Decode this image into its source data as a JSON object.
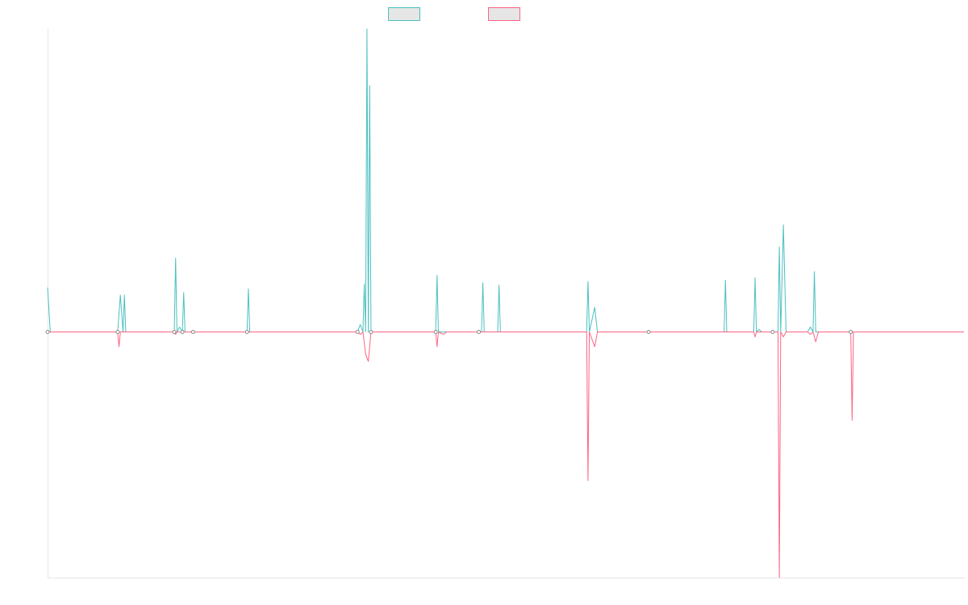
{
  "chart_data": {
    "type": "line",
    "title": "",
    "xlabel": "",
    "ylabel": "",
    "x_range": [
      0,
      340
    ],
    "ylim": [
      -100,
      123
    ],
    "grid": false,
    "legend_placement": "top",
    "colors": {
      "series_a": "#4bc0c0",
      "series_b": "#ff6384",
      "axis": "#e6e6e6"
    },
    "series": [
      {
        "name": "",
        "color": "#4bc0c0",
        "points": [
          [
            0,
            18
          ],
          [
            1,
            0
          ],
          [
            26,
            0
          ],
          [
            27,
            15
          ],
          [
            28,
            0
          ],
          [
            28.5,
            15
          ],
          [
            29,
            0
          ],
          [
            47,
            0
          ],
          [
            47.5,
            30
          ],
          [
            48,
            0
          ],
          [
            49,
            2
          ],
          [
            50,
            0
          ],
          [
            50.5,
            16
          ],
          [
            51,
            0
          ],
          [
            74,
            0
          ],
          [
            74.5,
            17.5
          ],
          [
            75,
            0
          ],
          [
            115,
            0
          ],
          [
            116,
            3
          ],
          [
            117,
            0
          ],
          [
            117.5,
            19.5
          ],
          [
            118,
            0
          ],
          [
            118.5,
            123
          ],
          [
            119,
            0
          ],
          [
            119.5,
            100
          ],
          [
            120,
            0
          ],
          [
            144,
            0
          ],
          [
            144.5,
            23
          ],
          [
            145,
            0
          ],
          [
            161,
            0
          ],
          [
            161.5,
            20
          ],
          [
            162,
            0
          ],
          [
            167,
            0
          ],
          [
            167.5,
            19
          ],
          [
            168,
            0
          ],
          [
            200,
            0
          ],
          [
            200.5,
            20.5
          ],
          [
            201,
            0
          ],
          [
            203,
            10
          ],
          [
            204,
            0
          ],
          [
            251,
            0
          ],
          [
            251.5,
            21
          ],
          [
            252,
            0
          ],
          [
            262,
            0
          ],
          [
            262.5,
            22
          ],
          [
            263,
            0
          ],
          [
            264,
            1
          ],
          [
            265,
            0
          ],
          [
            271,
            0
          ],
          [
            271.5,
            34.5
          ],
          [
            272,
            0
          ],
          [
            273,
            43.5
          ],
          [
            274,
            0
          ],
          [
            282,
            0
          ],
          [
            283,
            2
          ],
          [
            284,
            0
          ],
          [
            284.5,
            24.5
          ],
          [
            285,
            0
          ],
          [
            286,
            0
          ],
          [
            340,
            0
          ]
        ]
      },
      {
        "name": "",
        "color": "#ff6384",
        "points": [
          [
            0,
            0
          ],
          [
            26,
            0
          ],
          [
            26.5,
            -6
          ],
          [
            27,
            0
          ],
          [
            47,
            0
          ],
          [
            47.5,
            -1
          ],
          [
            48,
            0
          ],
          [
            115,
            0
          ],
          [
            116,
            -1
          ],
          [
            117,
            0
          ],
          [
            118,
            -9
          ],
          [
            119,
            -12
          ],
          [
            120,
            0
          ],
          [
            144,
            0
          ],
          [
            144.5,
            -6
          ],
          [
            145,
            0
          ],
          [
            147,
            -1
          ],
          [
            148,
            0
          ],
          [
            200,
            0
          ],
          [
            200.5,
            -60.5
          ],
          [
            201,
            0
          ],
          [
            203,
            -6
          ],
          [
            204,
            0
          ],
          [
            262,
            0
          ],
          [
            262.5,
            -2
          ],
          [
            263,
            0
          ],
          [
            271,
            0
          ],
          [
            271.5,
            -100
          ],
          [
            272,
            0
          ],
          [
            273,
            -2
          ],
          [
            274,
            0
          ],
          [
            282,
            0
          ],
          [
            283,
            -1
          ],
          [
            284,
            0
          ],
          [
            285,
            -4
          ],
          [
            286,
            0
          ],
          [
            298,
            0
          ],
          [
            298.5,
            -36
          ],
          [
            299,
            0
          ],
          [
            340,
            0
          ]
        ]
      }
    ],
    "markers": [
      [
        0,
        0
      ],
      [
        26,
        0
      ],
      [
        47,
        0
      ],
      [
        50,
        0
      ],
      [
        54,
        0
      ],
      [
        74,
        0
      ],
      [
        115,
        0
      ],
      [
        120,
        0
      ],
      [
        144,
        0
      ],
      [
        160,
        0
      ],
      [
        223,
        0
      ],
      [
        269,
        0
      ],
      [
        298,
        0
      ]
    ]
  }
}
